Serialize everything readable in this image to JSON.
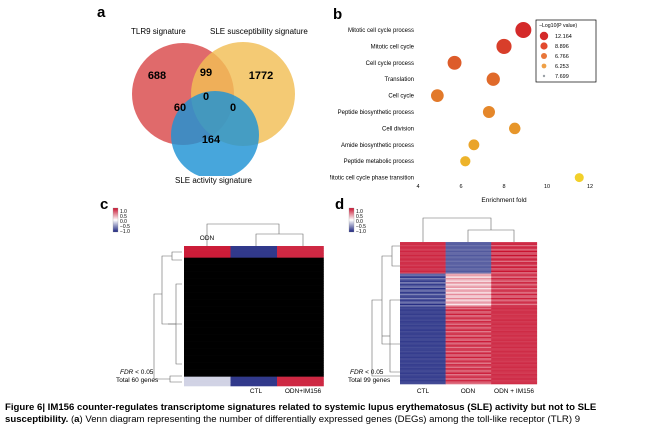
{
  "panels": {
    "a": {
      "label": "a",
      "sets": {
        "tlr9": {
          "name": "TLR9 signature",
          "color": "#d9494a"
        },
        "susceptibility": {
          "name": "SLE susceptibility signature",
          "color": "#f2be55"
        },
        "activity": {
          "name": "SLE activity signature",
          "color": "#1e93d4"
        }
      },
      "counts": {
        "tlr9_only": "688",
        "tlr9_susc": "99",
        "susc_only": "1772",
        "tlr9_act": "60",
        "all_three": "0",
        "susc_act": "0",
        "act_only": "164"
      }
    },
    "b": {
      "label": "b",
      "legend_title": "−Log10(P value)",
      "legend_values": [
        "12.164",
        "8.896",
        "6.766",
        "6.253",
        "7.699"
      ],
      "xlabel": "Enrichment fold",
      "xticks": [
        "4",
        "6",
        "8",
        "10",
        "12"
      ]
    },
    "c": {
      "label": "c",
      "color_key": [
        "1.0",
        "0.5",
        "0.0",
        "−0.5",
        "−1.0"
      ],
      "columns": [
        "ODN",
        "CTL",
        "ODN+IM156"
      ],
      "fdr_label": "FDR",
      "fdr_text": " < 0.05",
      "total": "Total 60 genes"
    },
    "d": {
      "label": "d",
      "color_key": [
        "1.0",
        "0.5",
        "0.0",
        "−0.5",
        "−1.0"
      ],
      "columns": [
        "CTL",
        "ODN",
        "ODN + IM156"
      ],
      "fdr_label": "FDR",
      "fdr_text": " < 0.05",
      "total": "Total 99 genes"
    }
  },
  "chart_data": {
    "type": "scatter",
    "title": "",
    "xlabel": "Enrichment fold",
    "ylabel": "",
    "xlim": [
      4,
      12
    ],
    "legend": "top-right",
    "legend_title": "−Log10(P value)",
    "categories": [
      "Mitotic cell cycle process",
      "Mitotic cell cycle",
      "Cell cycle process",
      "Translation",
      "Cell cycle",
      "Peptide biosynthetic process",
      "Cell division",
      "Amide biosynthetic process",
      "Peptide metabolic process",
      "Mitotic cell cycle phase transition"
    ],
    "x": [
      8.9,
      8.0,
      5.7,
      7.5,
      4.9,
      7.3,
      8.5,
      6.6,
      6.2,
      11.5
    ],
    "neg_log10_p": [
      12.2,
      11.5,
      10.5,
      10.0,
      9.5,
      9.0,
      8.5,
      8.0,
      7.5,
      6.5
    ],
    "colors": {
      "high": "#d42a2a",
      "low": "#f2d02a"
    }
  },
  "caption": {
    "figure": "Figure 6",
    "bold_text": "| IM156 counter-regulates transcriptome signatures related to systemic lupus erythematosus (SLE) activity but not to SLE susceptibility.",
    "line2_start": "(",
    "line2_a": "a",
    "line2_rest": ") Venn diagram representing the number of differentially expressed genes (DEGs) among the toll-like receptor (TLR) 9"
  }
}
